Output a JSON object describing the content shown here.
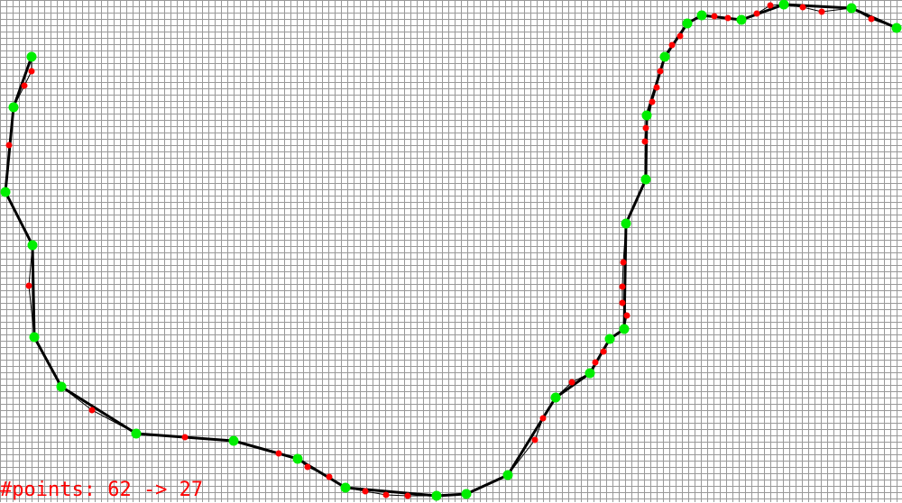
{
  "label": {
    "text": "#points: 62 -> 27"
  },
  "colors": {
    "background": "#ffffff",
    "grid": "#999999",
    "polyline": "#000000",
    "kept_point": "#00ee00",
    "removed_point": "#ff0000"
  }
}
